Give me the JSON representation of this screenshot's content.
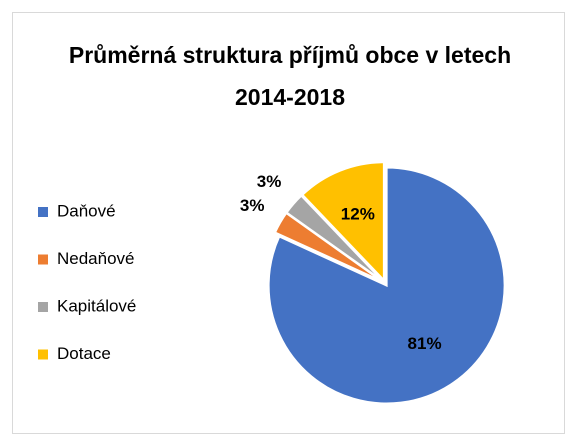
{
  "chart_data": {
    "type": "pie",
    "title": "Průměrná struktura příjmů obce v letech 2014-2018",
    "categories": [
      "Daňové",
      "Nedaňové",
      "Kapitálové",
      "Dotace"
    ],
    "values": [
      81,
      3,
      3,
      12
    ],
    "value_labels": [
      "81%",
      "3%",
      "3%",
      "12%"
    ],
    "colors": [
      "#4472c4",
      "#ed7d31",
      "#a5a5a5",
      "#ffc000"
    ],
    "legend": "left"
  }
}
